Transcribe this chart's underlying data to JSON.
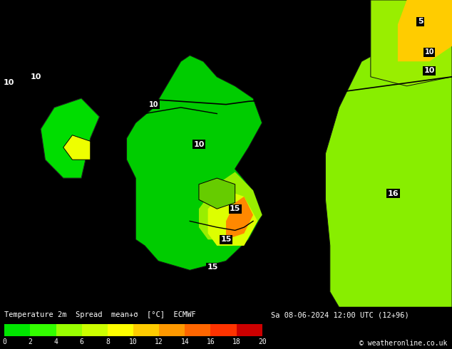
{
  "title_line1": "Temperature 2m  Spread  mean+σ  [°C]  ECMWF",
  "title_line2": "Sa 08-06-2024 12:00 UTC (12+96)",
  "copyright": "© weatheronline.co.uk",
  "colorbar_values": [
    0,
    2,
    4,
    6,
    8,
    10,
    12,
    14,
    16,
    18,
    20
  ],
  "colorbar_colors": [
    "#00e600",
    "#33ff00",
    "#99ff00",
    "#ccff00",
    "#ffff00",
    "#ffcc00",
    "#ff9900",
    "#ff6600",
    "#ff3300",
    "#cc0000",
    "#800000"
  ],
  "bg_color": "#00e600",
  "map_bg": "#00cc00",
  "contour_color": "#000000",
  "label_color": "#ffffff",
  "bottom_bar_bg": "#000000",
  "bottom_text_color": "#ffffff",
  "fig_width": 6.34,
  "fig_height": 4.9,
  "dpi": 100
}
